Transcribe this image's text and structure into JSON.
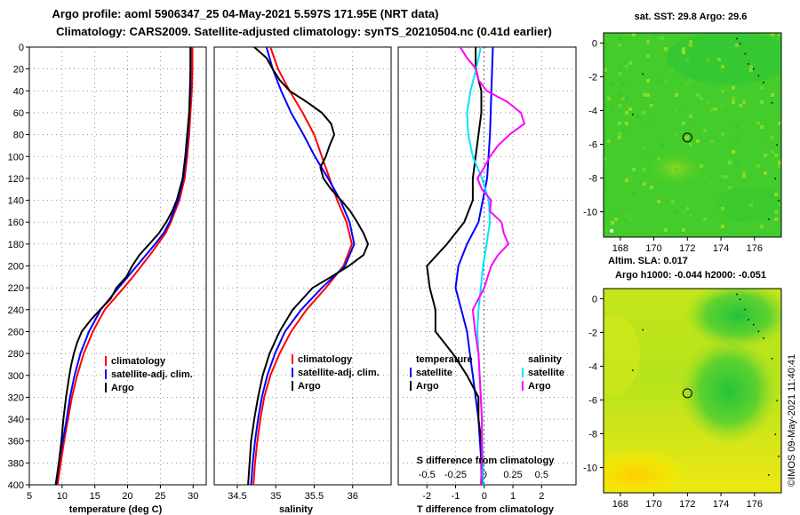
{
  "title_line1": "Argo profile: aoml 5906347_25 04-May-2021 5.597S 171.95E (NRT data)",
  "title_line2": "Climatology: CARS2009. Satellite-adjusted climatology: synTS_20210504.nc (0.41d earlier)",
  "colors": {
    "climatology": "#ff0000",
    "satellite": "#0000ff",
    "argo": "#000000",
    "salinity_satellite": "#00e5ff",
    "salinity_argo": "#ff00ff",
    "sst_map": "#22cc33",
    "sla_map": "#aadd22"
  },
  "chart_data": [
    {
      "type": "line",
      "name": "temperature",
      "xlabel": "temperature (deg C)",
      "xlim": [
        5,
        32
      ],
      "ylim": [
        400,
        0
      ],
      "xticks": [
        5,
        10,
        15,
        20,
        25,
        30
      ],
      "yticks": [
        0,
        20,
        40,
        60,
        80,
        100,
        120,
        140,
        160,
        180,
        200,
        220,
        240,
        260,
        280,
        300,
        320,
        340,
        360,
        380,
        400
      ],
      "legend": [
        "climatology",
        "satellite-adj. clim.",
        "Argo"
      ],
      "series": [
        {
          "name": "climatology",
          "color": "red",
          "depth": [
            0,
            20,
            40,
            60,
            80,
            100,
            120,
            140,
            160,
            170,
            180,
            190,
            200,
            210,
            220,
            240,
            260,
            280,
            300,
            320,
            340,
            360,
            380,
            400
          ],
          "values": [
            29.9,
            29.9,
            29.8,
            29.6,
            29.4,
            29.1,
            28.7,
            27.9,
            26.6,
            25.8,
            24.6,
            23.4,
            22.1,
            20.8,
            19.4,
            16.5,
            14.7,
            13.3,
            12.3,
            11.5,
            10.9,
            10.3,
            9.8,
            9.3
          ]
        },
        {
          "name": "satellite-adj. clim.",
          "color": "blue",
          "depth": [
            0,
            20,
            40,
            60,
            80,
            100,
            120,
            140,
            160,
            170,
            180,
            190,
            200,
            210,
            220,
            240,
            260,
            280,
            300,
            320,
            340,
            360,
            380,
            400
          ],
          "values": [
            29.6,
            29.6,
            29.6,
            29.4,
            29.2,
            28.9,
            28.5,
            27.7,
            26.4,
            25.5,
            24.2,
            22.8,
            21.4,
            20.0,
            18.6,
            15.9,
            14.1,
            12.8,
            11.9,
            11.2,
            10.7,
            10.1,
            9.5,
            9.0
          ]
        },
        {
          "name": "Argo",
          "color": "black",
          "depth": [
            0,
            20,
            40,
            60,
            80,
            100,
            120,
            140,
            150,
            160,
            170,
            180,
            190,
            200,
            210,
            220,
            230,
            240,
            250,
            260,
            270,
            280,
            290,
            300,
            320,
            340,
            360,
            380,
            400
          ],
          "values": [
            29.6,
            29.6,
            29.5,
            29.4,
            29.1,
            28.8,
            28.4,
            27.5,
            26.8,
            25.9,
            24.8,
            23.3,
            21.8,
            20.7,
            19.8,
            18.3,
            17.4,
            15.8,
            14.3,
            13.0,
            12.3,
            11.8,
            11.4,
            11.1,
            10.6,
            10.2,
            9.9,
            9.5,
            9.1
          ]
        }
      ]
    },
    {
      "type": "line",
      "name": "salinity",
      "xlabel": "salinity",
      "xlim": [
        34.2,
        36.5
      ],
      "ylim": [
        400,
        0
      ],
      "xticks": [
        34.5,
        35,
        35.5,
        36
      ],
      "legend": [
        "climatology",
        "satellite-adj. clim.",
        "Argo"
      ],
      "series": [
        {
          "name": "climatology",
          "color": "red",
          "depth": [
            0,
            20,
            40,
            60,
            80,
            100,
            120,
            140,
            160,
            180,
            200,
            220,
            240,
            260,
            280,
            300,
            320,
            340,
            360,
            380,
            400
          ],
          "values": [
            34.93,
            35.03,
            35.18,
            35.35,
            35.5,
            35.6,
            35.7,
            35.8,
            35.92,
            35.99,
            35.88,
            35.65,
            35.4,
            35.2,
            35.05,
            34.93,
            34.85,
            34.8,
            34.76,
            34.73,
            34.71
          ]
        },
        {
          "name": "satellite-adj. clim.",
          "color": "blue",
          "depth": [
            0,
            20,
            40,
            60,
            80,
            100,
            120,
            140,
            160,
            180,
            200,
            220,
            240,
            260,
            280,
            300,
            320,
            340,
            360,
            380,
            400
          ],
          "values": [
            34.88,
            34.96,
            35.07,
            35.2,
            35.36,
            35.51,
            35.68,
            35.84,
            35.96,
            36.02,
            35.9,
            35.6,
            35.33,
            35.12,
            34.99,
            34.89,
            34.82,
            34.77,
            34.73,
            34.7,
            34.68
          ]
        },
        {
          "name": "Argo",
          "color": "black",
          "depth": [
            0,
            10,
            20,
            30,
            40,
            50,
            60,
            70,
            80,
            90,
            100,
            110,
            120,
            130,
            140,
            150,
            160,
            170,
            180,
            190,
            200,
            210,
            220,
            230,
            240,
            260,
            280,
            300,
            320,
            340,
            360,
            380,
            400
          ],
          "values": [
            34.72,
            34.88,
            34.96,
            35.05,
            35.18,
            35.4,
            35.6,
            35.72,
            35.76,
            35.7,
            35.65,
            35.58,
            35.62,
            35.72,
            35.85,
            35.97,
            36.06,
            36.14,
            36.2,
            36.14,
            35.95,
            35.72,
            35.48,
            35.35,
            35.22,
            35.05,
            34.92,
            34.83,
            34.77,
            34.72,
            34.68,
            34.66,
            34.64
          ]
        }
      ]
    },
    {
      "type": "line",
      "name": "differences",
      "xlabel": "T difference from climatology",
      "xlabel_top": "S difference from climatology",
      "xlim": [
        -3,
        3.2
      ],
      "xticks": [
        -2,
        -1,
        0,
        1,
        2
      ],
      "s_xticks": [
        -0.5,
        -0.25,
        0,
        0.25,
        0.5
      ],
      "legend_temperature": {
        "title": "temperature",
        "items": [
          "satellite",
          "Argo"
        ]
      },
      "legend_salinity": {
        "title": "salinity",
        "items": [
          "satellite",
          "Argo"
        ]
      },
      "series": [
        {
          "name": "T satellite",
          "color": "blue",
          "depth": [
            0,
            40,
            80,
            120,
            160,
            180,
            200,
            220,
            240,
            260,
            280,
            300,
            320,
            340,
            360,
            380,
            400
          ],
          "values": [
            0.3,
            0.25,
            0.2,
            0.1,
            -0.2,
            -0.6,
            -0.9,
            -1.0,
            -0.8,
            -0.6,
            -0.5,
            -0.4,
            -0.3,
            -0.2,
            -0.15,
            -0.1,
            -0.05
          ]
        },
        {
          "name": "T Argo",
          "color": "black",
          "depth": [
            0,
            20,
            40,
            60,
            80,
            100,
            120,
            140,
            160,
            180,
            200,
            220,
            240,
            260,
            280,
            300,
            320,
            340,
            360,
            380,
            400
          ],
          "values": [
            -0.3,
            -0.3,
            -0.1,
            -0.1,
            -0.2,
            -0.3,
            -0.4,
            -0.4,
            -0.7,
            -1.3,
            -2.0,
            -1.9,
            -1.7,
            -1.7,
            -1.1,
            -0.6,
            -0.2,
            -0.2,
            -0.1,
            -0.1,
            -0.1
          ]
        },
        {
          "name": "S satellite",
          "color": "cyan",
          "depth": [
            0,
            20,
            40,
            60,
            80,
            100,
            120,
            140,
            160,
            180,
            200,
            220,
            240,
            260,
            280,
            300,
            320,
            340,
            360,
            380,
            400
          ],
          "values": [
            -0.03,
            -0.07,
            -0.12,
            -0.15,
            -0.14,
            -0.1,
            -0.02,
            0.04,
            0.05,
            0.02,
            -0.01,
            -0.03,
            -0.05,
            -0.06,
            -0.05,
            -0.04,
            -0.03,
            -0.02,
            -0.02,
            -0.01,
            -0.01
          ]
        },
        {
          "name": "S Argo",
          "color": "magenta",
          "depth": [
            0,
            10,
            20,
            30,
            40,
            50,
            60,
            70,
            80,
            90,
            100,
            110,
            120,
            130,
            140,
            150,
            160,
            170,
            180,
            190,
            200,
            220,
            240,
            260,
            280,
            300,
            320,
            340,
            360,
            380,
            400
          ],
          "values": [
            -0.21,
            -0.15,
            -0.07,
            -0.05,
            0.02,
            0.2,
            0.32,
            0.35,
            0.22,
            0.12,
            0.05,
            0.0,
            -0.06,
            -0.02,
            0.06,
            0.05,
            0.15,
            0.17,
            0.21,
            0.12,
            0.06,
            0.0,
            -0.1,
            -0.08,
            -0.05,
            -0.04,
            -0.03,
            -0.02,
            -0.02,
            -0.02,
            -0.03
          ]
        }
      ]
    },
    {
      "type": "heatmap",
      "name": "sst_map",
      "title": "sat. SST: 29.8 Argo: 29.6",
      "xticks": [
        168,
        170,
        172,
        174,
        176
      ],
      "yticks": [
        0,
        -2,
        -4,
        -6,
        -8,
        -10
      ],
      "xlim": [
        167,
        177.6
      ],
      "ylim": [
        -11.5,
        0.6
      ],
      "marker": {
        "lon": 172,
        "lat": -5.6
      }
    },
    {
      "type": "heatmap",
      "name": "sla_map",
      "title_line1": "Altim. SLA: 0.017",
      "title_line2": "Argo h1000: -0.044 h2000: -0.051",
      "xticks": [
        168,
        170,
        172,
        174,
        176
      ],
      "yticks": [
        0,
        -2,
        -4,
        -6,
        -8,
        -10
      ],
      "xlim": [
        167,
        177.6
      ],
      "ylim": [
        -11.5,
        0.6
      ],
      "marker": {
        "lon": 172,
        "lat": -5.6
      }
    }
  ],
  "watermark": "©IMOS 09-May-2021 11:40:41"
}
